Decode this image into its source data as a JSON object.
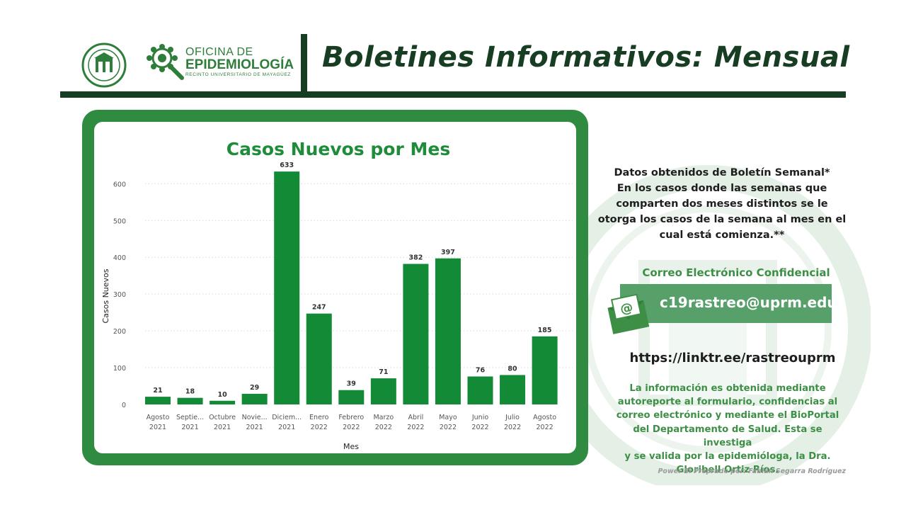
{
  "header": {
    "title": "Boletines Informativos:  Mensual",
    "logo_line1": "OFICINA DE",
    "logo_line2": "EPIDEMIOLOGÍA",
    "logo_line3": "RECINTO UNIVERSITARIO DE MAYAGÜEZ",
    "seal_icon": "university-seal-icon",
    "epi_icon": "virus-magnifier-icon"
  },
  "colors": {
    "brand_dark": "#173d22",
    "brand_green": "#2e8b3f",
    "bar": "#138a36",
    "email_box": "#58a06a",
    "info_text": "#3d8f45"
  },
  "chart_data": {
    "type": "bar",
    "title": "Casos Nuevos por Mes",
    "xlabel": "Mes",
    "ylabel": "Casos Nuevos",
    "ylim": [
      0,
      650
    ],
    "yticks": [
      0,
      100,
      200,
      300,
      400,
      500,
      600
    ],
    "grid": true,
    "categories": [
      [
        "Agosto",
        "2021"
      ],
      [
        "Septie...",
        "2021"
      ],
      [
        "Octubre",
        "2021"
      ],
      [
        "Novie...",
        "2021"
      ],
      [
        "Diciem...",
        "2021"
      ],
      [
        "Enero",
        "2022"
      ],
      [
        "Febrero",
        "2022"
      ],
      [
        "Marzo",
        "2022"
      ],
      [
        "Abril",
        "2022"
      ],
      [
        "Mayo",
        "2022"
      ],
      [
        "Junio",
        "2022"
      ],
      [
        "Julio",
        "2022"
      ],
      [
        "Agosto",
        "2022"
      ]
    ],
    "values": [
      21,
      18,
      10,
      29,
      633,
      247,
      39,
      71,
      382,
      397,
      76,
      80,
      185
    ]
  },
  "sidebar": {
    "note_lines": [
      "Datos obtenidos de Boletín Semanal*",
      "En los casos donde las semanas que",
      "comparten dos meses distintos se le",
      "otorga los casos de la semana al mes en el",
      "cual está comienza.**"
    ],
    "correo_title": "Correo Electrónico Confidencial",
    "email": "c19rastreo@uprm.edu",
    "email_icon": "envelope-at-icon",
    "link": "https://linktr.ee/rastreouprm",
    "info_lines": [
      "La información es obtenida mediante",
      "autoreporte al formulario, confidencias al",
      "correo electrónico y mediante el BioPortal",
      "del Departamento de Salud. Esta se investiga",
      "y se valida por la epidemióloga, la Dra.",
      "Gloribell Ortiz Ríos."
    ],
    "credit": "Power Bi Preprado por: Fabián Segarra Rodríguez"
  }
}
